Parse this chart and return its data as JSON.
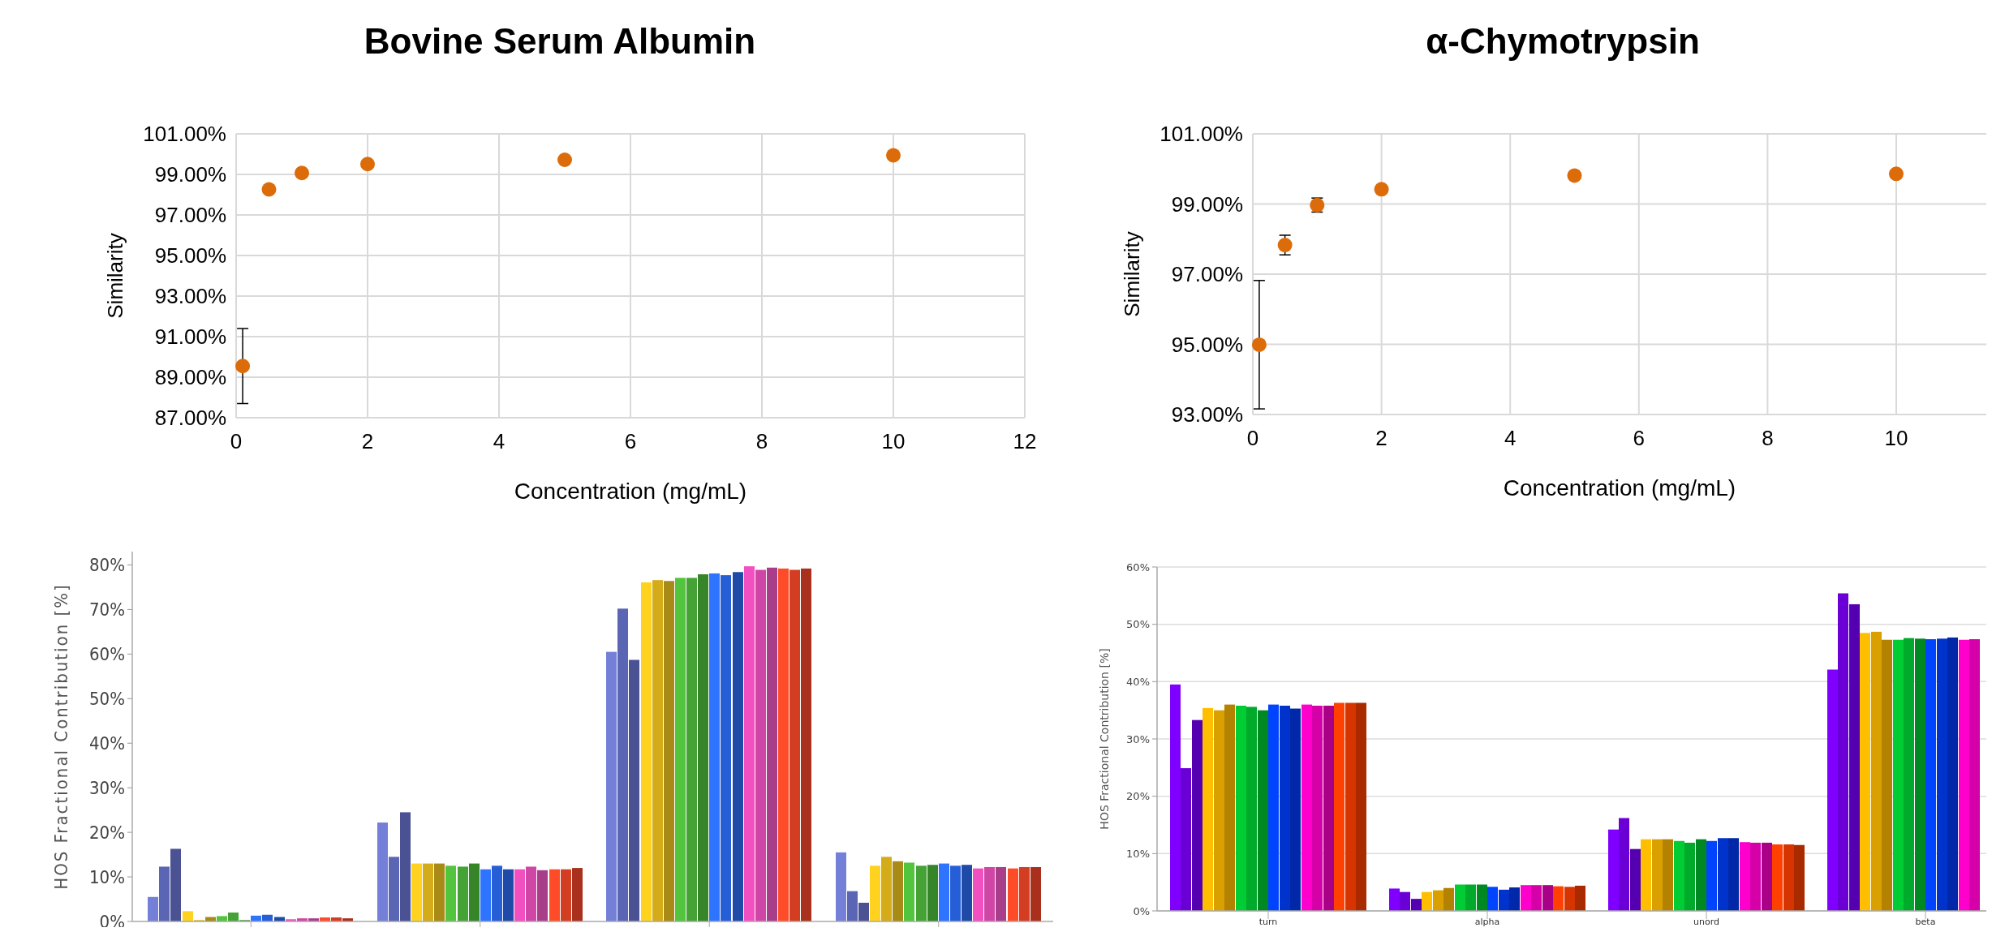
{
  "chart_data": [
    {
      "type": "scatter",
      "title": "Bovine Serum Albumin",
      "xlabel": "Concentration (mg/mL)",
      "ylabel": "Similarity",
      "x": [
        0.1,
        0.5,
        1,
        2,
        5,
        10
      ],
      "xlim": [
        0,
        12
      ],
      "xticks": [
        0,
        2,
        4,
        6,
        8,
        10,
        12
      ],
      "ylim": [
        87,
        101
      ],
      "yticks": [
        {
          "value": 87,
          "label": "87.00%"
        },
        {
          "value": 89,
          "label": "89.00%"
        },
        {
          "value": 91,
          "label": "91.00%"
        },
        {
          "value": 93,
          "label": "93.00%"
        },
        {
          "value": 95,
          "label": "95.00%"
        },
        {
          "value": 97,
          "label": "97.00%"
        },
        {
          "value": 99,
          "label": "99.00%"
        },
        {
          "value": 101,
          "label": "101.00%"
        }
      ],
      "grid": true,
      "marker": "circle",
      "series": [
        {
          "color": "#dc6c0a",
          "values": [
            89.55,
            98.26,
            99.07,
            99.51,
            99.72,
            99.94
          ],
          "errors": [
            1.85,
            null,
            null,
            null,
            null,
            null
          ]
        }
      ]
    },
    {
      "type": "scatter",
      "title": "α-Chymotrypsin",
      "xlabel": "Concentration (mg/mL)",
      "ylabel": "Similarity",
      "x": [
        0.1,
        0.5,
        1,
        2,
        5,
        10
      ],
      "xlim": [
        0,
        11.4
      ],
      "xticks": [
        0,
        2,
        4,
        6,
        8,
        10
      ],
      "ylim": [
        93,
        101
      ],
      "yticks": [
        {
          "value": 93,
          "label": "93.00%"
        },
        {
          "value": 95,
          "label": "95.00%"
        },
        {
          "value": 97,
          "label": "97.00%"
        },
        {
          "value": 99,
          "label": "99.00%"
        },
        {
          "value": 101,
          "label": "101.00%"
        }
      ],
      "grid": true,
      "marker": "circle",
      "series": [
        {
          "color": "#dc6c0a",
          "values": [
            94.99,
            97.83,
            98.97,
            99.42,
            99.81,
            99.86
          ],
          "errors": [
            1.83,
            0.28,
            0.2,
            null,
            null,
            null
          ]
        }
      ]
    },
    {
      "type": "bar",
      "ylabel": "HOS Fractional Contribution [%]",
      "categories": [
        null,
        null,
        null,
        null
      ],
      "ylim": [
        0,
        83
      ],
      "yticks": [
        {
          "value": 0,
          "label": "0%"
        },
        {
          "value": 10,
          "label": "10%"
        },
        {
          "value": 20,
          "label": "20%"
        },
        {
          "value": 30,
          "label": "30%"
        },
        {
          "value": 40,
          "label": "40%"
        },
        {
          "value": 50,
          "label": "50%"
        },
        {
          "value": 60,
          "label": "60%"
        },
        {
          "value": 70,
          "label": "70%"
        },
        {
          "value": 80,
          "label": "80%"
        }
      ],
      "grid": false,
      "series": [
        {
          "color": "#7480d8",
          "values": [
            5.5,
            22.2,
            60.5,
            15.5
          ]
        },
        {
          "color": "#5a66b4",
          "values": [
            12.3,
            14.5,
            70.2,
            6.8
          ]
        },
        {
          "color": "#4a5294",
          "values": [
            16.3,
            24.5,
            58.7,
            4.2
          ]
        },
        {
          "color": "#ffd21f",
          "values": [
            2.3,
            13.0,
            76.1,
            12.5
          ]
        },
        {
          "color": "#d4ac1a",
          "values": [
            0.3,
            13.0,
            76.6,
            14.5
          ]
        },
        {
          "color": "#a88a16",
          "values": [
            1.0,
            13.0,
            76.4,
            13.5
          ]
        },
        {
          "color": "#52c43e",
          "values": [
            1.2,
            12.5,
            77.1,
            13.2
          ]
        },
        {
          "color": "#44a334",
          "values": [
            2.0,
            12.3,
            77.1,
            12.5
          ]
        },
        {
          "color": "#378529",
          "values": [
            0.3,
            13.0,
            77.9,
            12.7
          ]
        },
        {
          "color": "#2e74ff",
          "values": [
            1.3,
            11.7,
            78.1,
            13.0
          ]
        },
        {
          "color": "#255ed6",
          "values": [
            1.5,
            12.5,
            77.7,
            12.5
          ]
        },
        {
          "color": "#1f4aa8",
          "values": [
            1.0,
            11.7,
            78.4,
            12.7
          ]
        },
        {
          "color": "#f24fc0",
          "values": [
            0.5,
            11.7,
            79.7,
            11.9
          ]
        },
        {
          "color": "#d046a6",
          "values": [
            0.7,
            12.3,
            78.9,
            12.2
          ]
        },
        {
          "color": "#a83e8a",
          "values": [
            0.7,
            11.5,
            79.4,
            12.2
          ]
        },
        {
          "color": "#ff4c28",
          "values": [
            0.9,
            11.7,
            79.2,
            11.9
          ]
        },
        {
          "color": "#d33d22",
          "values": [
            0.9,
            11.7,
            78.9,
            12.2
          ]
        },
        {
          "color": "#a8301c",
          "values": [
            0.7,
            12.0,
            79.2,
            12.2
          ]
        }
      ]
    },
    {
      "type": "bar",
      "ylabel": "HOS Fractional Contribution [%]",
      "categories": [
        "turn",
        "alpha",
        "unord",
        "beta"
      ],
      "ylim": [
        0,
        60
      ],
      "yticks": [
        {
          "value": 0,
          "label": "0%"
        },
        {
          "value": 10,
          "label": "10%"
        },
        {
          "value": 20,
          "label": "20%"
        },
        {
          "value": 30,
          "label": "30%"
        },
        {
          "value": 40,
          "label": "40%"
        },
        {
          "value": 50,
          "label": "50%"
        },
        {
          "value": 60,
          "label": "60%"
        }
      ],
      "grid": "y",
      "series": [
        {
          "color": "#8000ff",
          "values": [
            39.5,
            3.9,
            14.2,
            42.1
          ]
        },
        {
          "color": "#6a00d6",
          "values": [
            24.9,
            3.3,
            16.2,
            55.4
          ]
        },
        {
          "color": "#5500b0",
          "values": [
            33.3,
            2.1,
            10.8,
            53.5
          ]
        },
        {
          "color": "#ffbf00",
          "values": [
            35.4,
            3.3,
            12.5,
            48.5
          ]
        },
        {
          "color": "#d9a000",
          "values": [
            35.0,
            3.6,
            12.5,
            48.7
          ]
        },
        {
          "color": "#b38200",
          "values": [
            36.0,
            4.0,
            12.5,
            47.3
          ]
        },
        {
          "color": "#00cc33",
          "values": [
            35.8,
            4.6,
            12.2,
            47.3
          ]
        },
        {
          "color": "#00aa2a",
          "values": [
            35.6,
            4.6,
            11.9,
            47.6
          ]
        },
        {
          "color": "#008822",
          "values": [
            35.0,
            4.6,
            12.5,
            47.5
          ]
        },
        {
          "color": "#0044ff",
          "values": [
            36.0,
            4.2,
            12.2,
            47.4
          ]
        },
        {
          "color": "#0033cc",
          "values": [
            35.8,
            3.7,
            12.7,
            47.5
          ]
        },
        {
          "color": "#0028a8",
          "values": [
            35.3,
            4.1,
            12.7,
            47.7
          ]
        },
        {
          "color": "#ff00cc",
          "values": [
            36.0,
            4.5,
            12.0,
            47.3
          ]
        },
        {
          "color": "#d600a8",
          "values": [
            35.8,
            4.5,
            11.9,
            47.4
          ]
        },
        {
          "color": "#aa0088",
          "values": [
            35.8,
            4.5,
            11.9,
            null
          ]
        },
        {
          "color": "#ff4000",
          "values": [
            36.3,
            4.3,
            11.6,
            null
          ]
        },
        {
          "color": "#d63400",
          "values": [
            36.3,
            4.2,
            11.6,
            null
          ]
        },
        {
          "color": "#aa2a00",
          "values": [
            36.3,
            4.4,
            11.5,
            null
          ]
        }
      ]
    }
  ]
}
